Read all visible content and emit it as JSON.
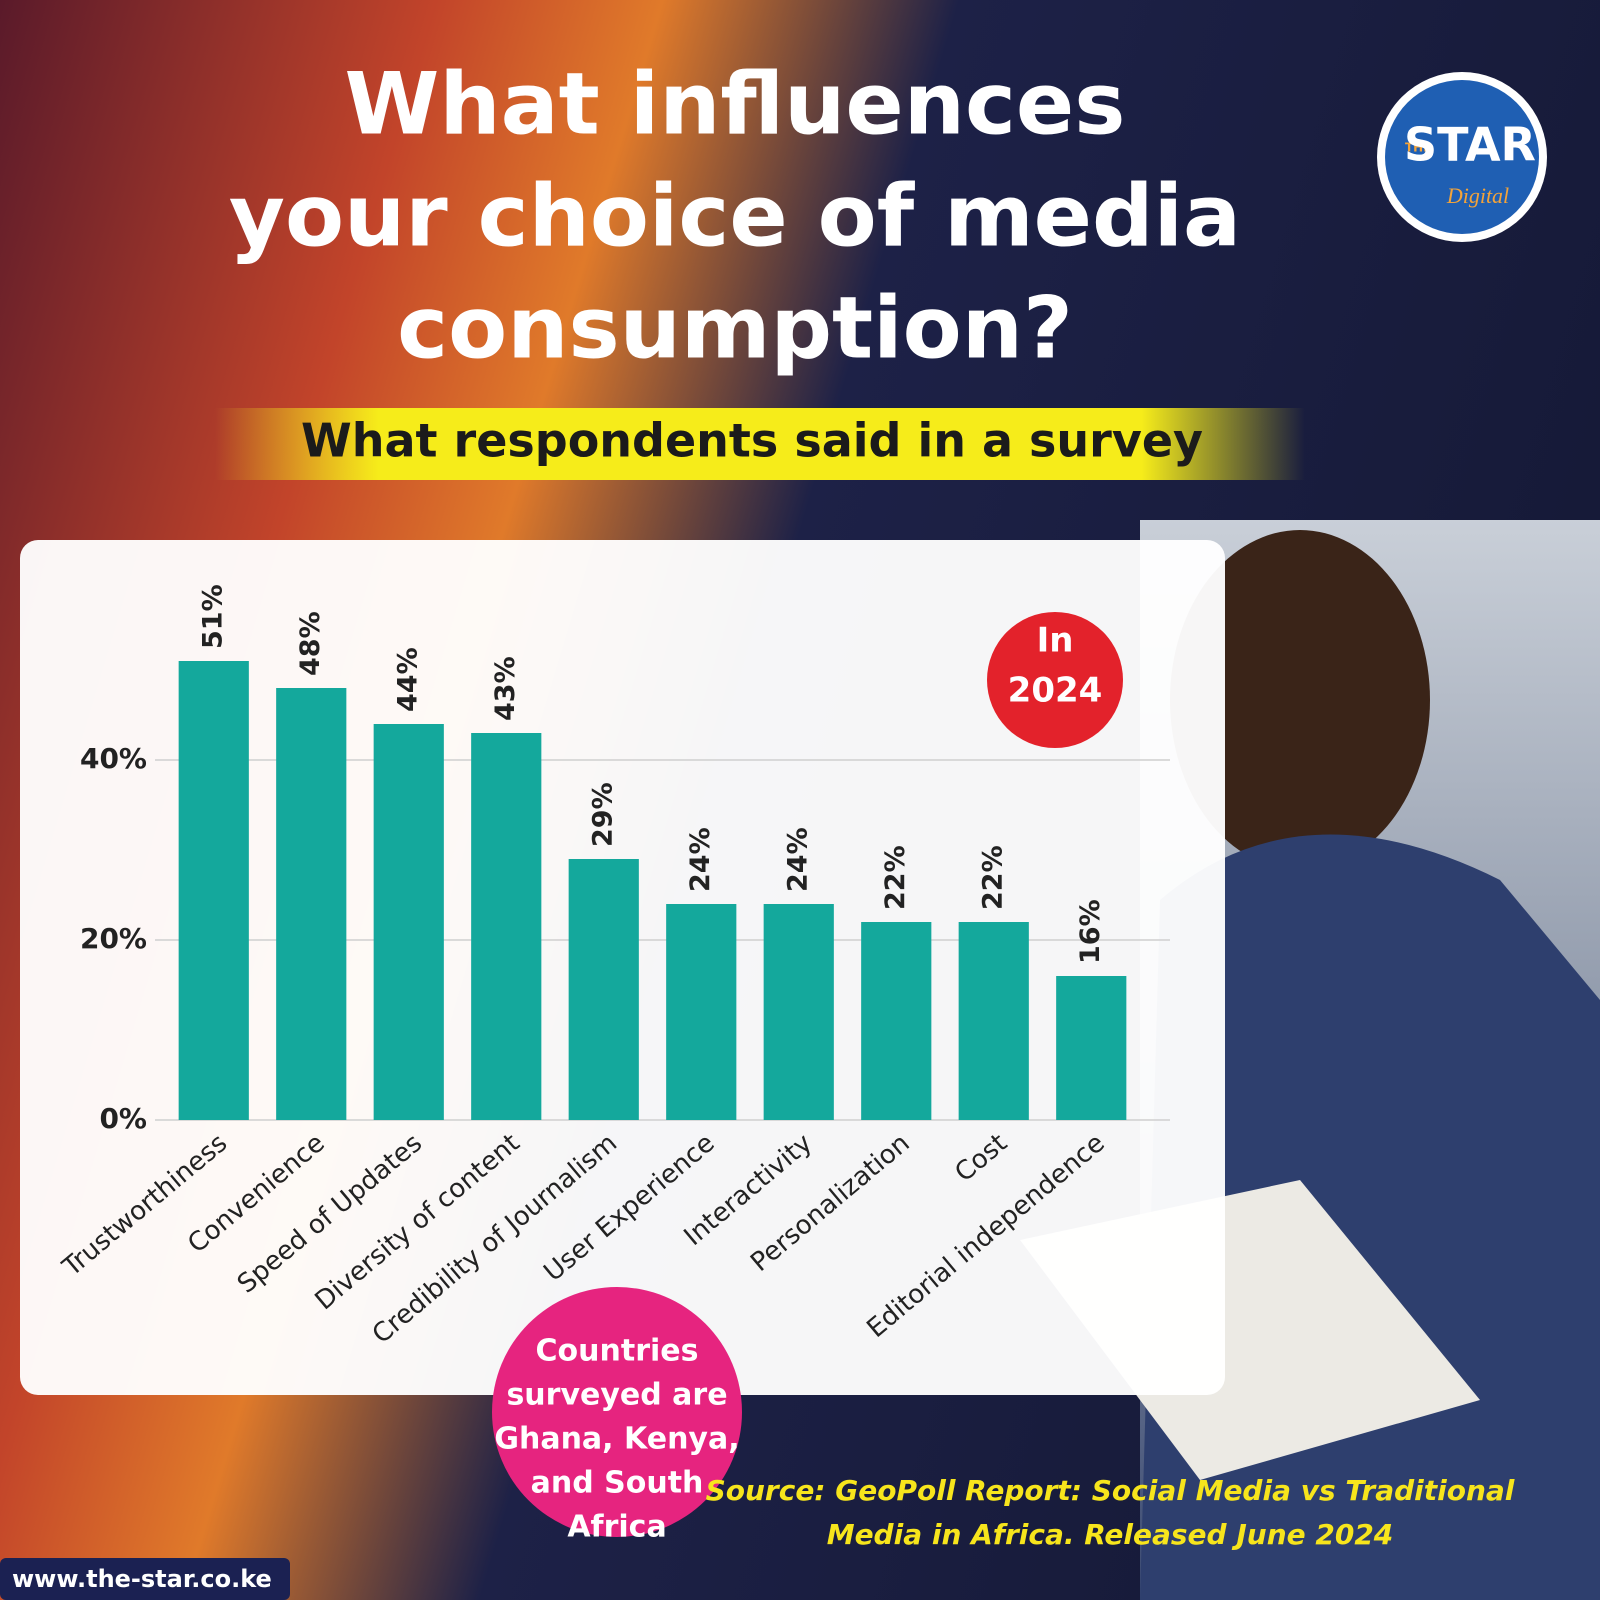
{
  "chart_data": {
    "type": "bar",
    "title": [
      "What influences",
      "your choice of media",
      "consumption?"
    ],
    "subtitle": "What respondents said in a survey",
    "badge": [
      "In",
      "2024"
    ],
    "note": [
      "Countries",
      "surveyed are",
      "Ghana, Kenya,",
      "and South",
      "Africa"
    ],
    "source": [
      "Source: GeoPoll Report: Social Media vs Traditional",
      "Media in Africa. Released June 2024"
    ],
    "website": "www.the-star.co.ke",
    "logo": [
      "THE",
      "STAR",
      "Digital"
    ],
    "categories": [
      "Trustworthiness",
      "Convenience",
      "Speed of Updates",
      "Diversity of content",
      "Credibility of Journalism",
      "User Experience",
      "Interactivity",
      "Personalization",
      "Cost",
      "Editorial independence"
    ],
    "values": [
      51,
      48,
      44,
      43,
      29,
      24,
      24,
      22,
      22,
      16
    ],
    "value_labels": [
      "51%",
      "48%",
      "44%",
      "43%",
      "29%",
      "24%",
      "24%",
      "22%",
      "22%",
      "16%"
    ],
    "color": "#14a89c",
    "ylim": [
      0,
      60
    ],
    "yticks": [
      {
        "value": 0,
        "label": "0%"
      },
      {
        "value": 20,
        "label": "20%"
      },
      {
        "value": 40,
        "label": "40%"
      }
    ],
    "grid": true
  }
}
